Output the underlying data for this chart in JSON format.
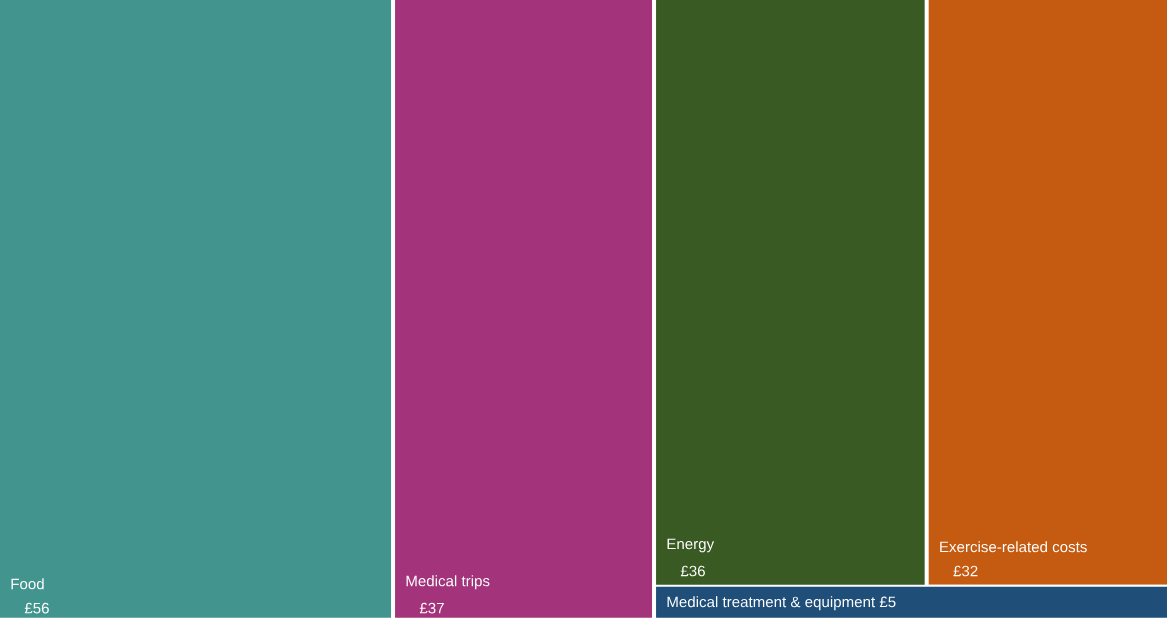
{
  "chart_data": {
    "type": "other",
    "categories": [
      "Food",
      "Medical trips",
      "Energy",
      "Exercise-related costs",
      "Medical treatment & equipment"
    ],
    "values": [
      56,
      37,
      36,
      32,
      5
    ],
    "value_labels": [
      "£56",
      "£37",
      "£36",
      "£32",
      "£5"
    ],
    "colors": [
      "#42958f",
      "#a3337b",
      "#3a5a24",
      "#c55a11",
      "#1f4e79"
    ]
  }
}
